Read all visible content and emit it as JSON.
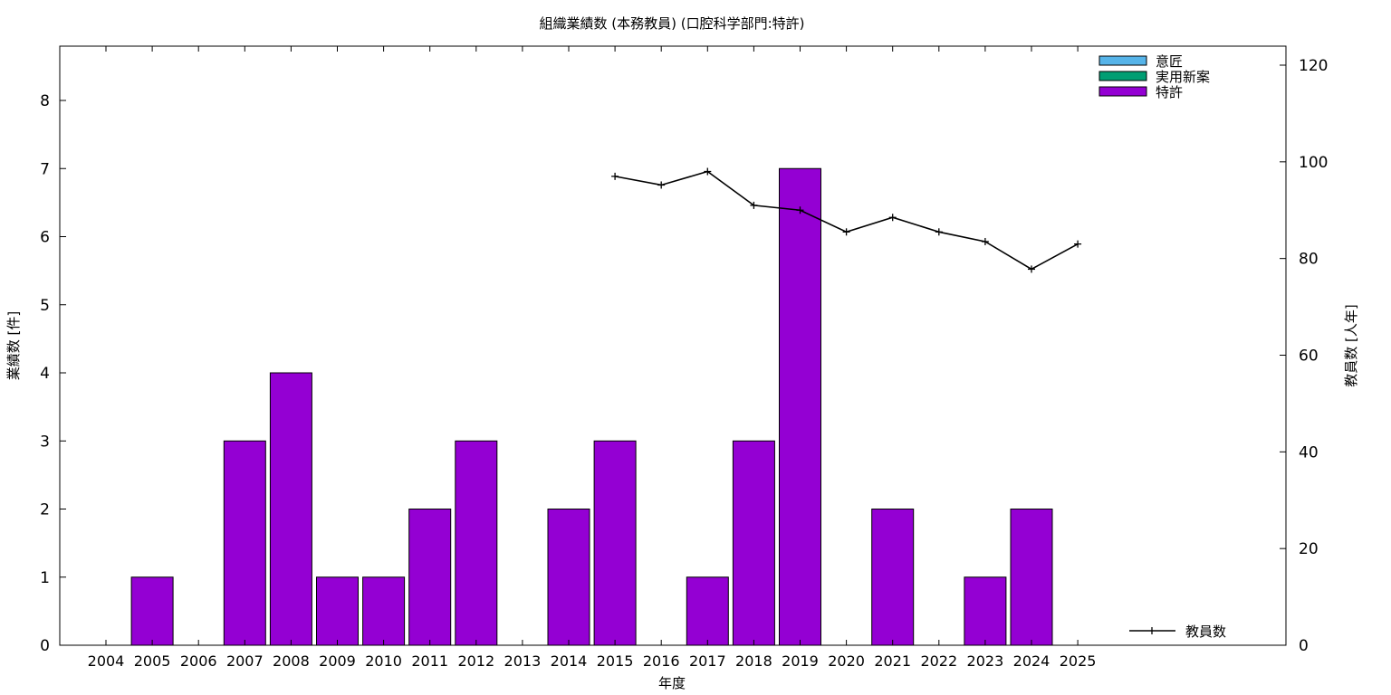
{
  "chart_data": {
    "type": "bar",
    "title": "組織業績数 (本務教員) (口腔科学部門:特許)",
    "xlabel": "年度",
    "ylabel": "業績数 [件]",
    "y2label": "教員数 [人年]",
    "categories": [
      "2004",
      "2005",
      "2006",
      "2007",
      "2008",
      "2009",
      "2010",
      "2011",
      "2012",
      "2013",
      "2014",
      "2015",
      "2016",
      "2017",
      "2018",
      "2019",
      "2020",
      "2021",
      "2022",
      "2023",
      "2024",
      "2025"
    ],
    "ylim": [
      0,
      8.5
    ],
    "yticks": [
      0,
      1,
      2,
      3,
      4,
      5,
      6,
      7,
      8
    ],
    "y2lim": [
      0,
      125
    ],
    "y2ticks": [
      0,
      20,
      40,
      60,
      80,
      100,
      120
    ],
    "grid": false,
    "series": [
      {
        "name": "意匠",
        "color": "#56b4e9",
        "values": [
          0,
          0,
          0,
          0,
          0,
          0,
          0,
          0,
          0,
          0,
          0,
          0,
          0,
          0,
          0,
          0,
          0,
          0,
          0,
          0,
          0,
          0
        ]
      },
      {
        "name": "実用新案",
        "color": "#009e73",
        "values": [
          0,
          0,
          0,
          0,
          0,
          0,
          0,
          0,
          0,
          0,
          0,
          0,
          0,
          0,
          0,
          0,
          0,
          0,
          0,
          0,
          0,
          0
        ]
      },
      {
        "name": "特許",
        "color": "#9400d3",
        "values": [
          0,
          1,
          0,
          3,
          4,
          1,
          1,
          2,
          3,
          0,
          2,
          3,
          0,
          1,
          3,
          7,
          0,
          2,
          0,
          1,
          2,
          0
        ]
      }
    ],
    "line_series": {
      "name": "教員数",
      "color": "#000000",
      "axis": "right",
      "x": [
        "2015",
        "2016",
        "2017",
        "2018",
        "2019",
        "2020",
        "2021",
        "2022",
        "2023",
        "2024",
        "2025"
      ],
      "values": [
        97,
        95.2,
        98,
        91,
        90,
        85.5,
        88.5,
        85.5,
        83.5,
        77.8,
        83
      ]
    },
    "legend": {
      "bars_position": "top-right",
      "line_position": "bottom-right"
    }
  }
}
